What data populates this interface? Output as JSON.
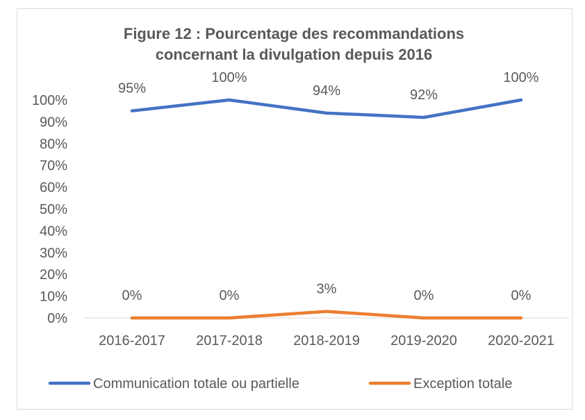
{
  "chart_data": {
    "type": "line",
    "title": "Figure 12 : Pourcentage des recommandations concernant la divulgation depuis 2016",
    "title_lines": [
      "Figure 12 : Pourcentage des recommandations",
      "concernant la divulgation depuis 2016"
    ],
    "categories": [
      "2016-2017",
      "2017-2018",
      "2018-2019",
      "2019-2020",
      "2020-2021"
    ],
    "series": [
      {
        "name": "Communication totale ou partielle",
        "values": [
          95,
          100,
          94,
          92,
          100
        ],
        "labels": [
          "95%",
          "100%",
          "94%",
          "92%",
          "100%"
        ],
        "color": "#4472C4"
      },
      {
        "name": "Exception totale",
        "values": [
          0,
          0,
          3,
          0,
          0
        ],
        "labels": [
          "0%",
          "0%",
          "3%",
          "0%",
          "0%"
        ],
        "color": "#ED7D31"
      }
    ],
    "ylim": [
      0,
      100
    ],
    "yticks": [
      "0%",
      "10%",
      "20%",
      "30%",
      "40%",
      "50%",
      "60%",
      "70%",
      "80%",
      "90%",
      "100%"
    ],
    "xlabel": "",
    "ylabel": "",
    "grid": false,
    "legend": "bottom"
  }
}
